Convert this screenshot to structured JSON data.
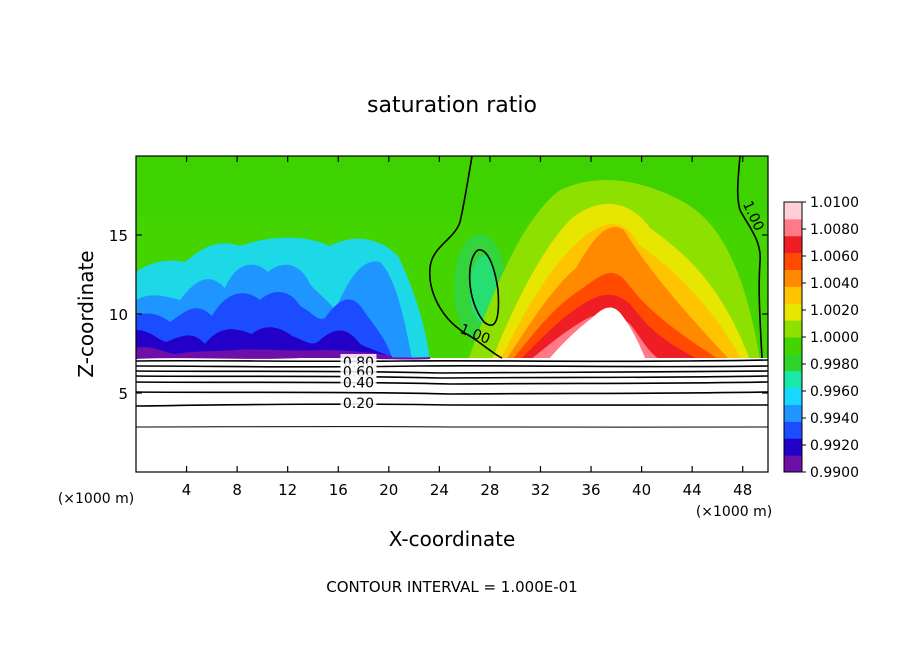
{
  "chart_data": {
    "type": "heatmap",
    "title": "saturation ratio",
    "xlabel": "X-coordinate",
    "ylabel": "Z-coordinate",
    "x_unit": "(×1000 m)",
    "y_unit": "(×1000 m)",
    "footer": "CONTOUR INTERVAL = 1.000E-01",
    "xlim": [
      0,
      50
    ],
    "ylim": [
      0,
      20
    ],
    "x_ticks": [
      4,
      8,
      12,
      16,
      20,
      24,
      28,
      32,
      36,
      40,
      44,
      48
    ],
    "y_ticks": [
      5,
      10,
      15
    ],
    "colorbar": {
      "min": 0.99,
      "max": 1.01,
      "ticks": [
        "1.0100",
        "1.0080",
        "1.0060",
        "1.0040",
        "1.0020",
        "1.0000",
        "0.9980",
        "0.9960",
        "0.9940",
        "0.9920",
        "0.9900"
      ],
      "colors": [
        "#6e0fa8",
        "#2200c8",
        "#1c4cff",
        "#1f95ff",
        "#19d8ff",
        "#18e8a8",
        "#2ed42a",
        "#44d400",
        "#8ee000",
        "#e6e600",
        "#ffc400",
        "#ff8a00",
        "#ff4a00",
        "#ee1e24",
        "#ff7a86",
        "#ffd0d8"
      ]
    },
    "contour_labels": [
      {
        "text": "1.00",
        "x": 26.8,
        "z": 8.7
      },
      {
        "text": "1.00",
        "x": 48.8,
        "z": 16.2
      },
      {
        "text": "0.80",
        "x": 17.6,
        "z": 6.9
      },
      {
        "text": "0.60",
        "x": 17.6,
        "z": 6.3
      },
      {
        "text": "0.40",
        "x": 17.6,
        "z": 5.6
      },
      {
        "text": "0.20",
        "x": 17.6,
        "z": 4.3
      }
    ]
  }
}
